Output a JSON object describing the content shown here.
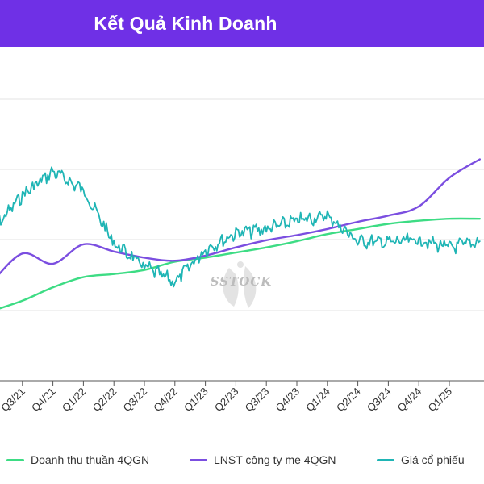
{
  "header": {
    "title": "Kết Quả Kinh Doanh"
  },
  "watermark": {
    "text": "SSTOCK"
  },
  "colors": {
    "header_bg": "#6f30e6",
    "revenue": "#3ddc84",
    "profit": "#7b4ee0",
    "price": "#1fb5b5",
    "grid": "#e3e3e3"
  },
  "chart_data": {
    "type": "line",
    "categories": [
      "Q3/21",
      "Q4/21",
      "Q1/22",
      "Q2/22",
      "Q3/22",
      "Q4/22",
      "Q1/23",
      "Q2/23",
      "Q3/23",
      "Q4/23",
      "Q1/24",
      "Q2/24",
      "Q3/24",
      "Q4/24",
      "Q1/25"
    ],
    "x_start": "Q2/21",
    "x_end": "Q2/25",
    "grid": true,
    "legend_position": "bottom",
    "series": [
      {
        "name": "Doanh thu thuần 4QGN",
        "x": [
          "Q2/21",
          "Q3/21",
          "Q4/21",
          "Q1/22",
          "Q2/22",
          "Q3/22",
          "Q4/22",
          "Q1/23",
          "Q2/23",
          "Q3/23",
          "Q4/23",
          "Q1/24",
          "Q2/24",
          "Q3/24",
          "Q4/24",
          "Q1/25",
          "Q2/25"
        ],
        "values": [
          2,
          12,
          25,
          35,
          38,
          42,
          50,
          54,
          59,
          64,
          70,
          77,
          82,
          87,
          90,
          92,
          92
        ]
      },
      {
        "name": "LNST công ty mẹ 4QGN",
        "x": [
          "Q2/21",
          "Q3/21",
          "Q4/21",
          "Q1/22",
          "Q2/22",
          "Q3/22",
          "Q4/22",
          "Q1/23",
          "Q2/23",
          "Q3/23",
          "Q4/23",
          "Q1/24",
          "Q2/24",
          "Q3/24",
          "Q4/24",
          "Q1/25",
          "Q2/25"
        ],
        "values": [
          30,
          58,
          48,
          67,
          60,
          54,
          51,
          56,
          64,
          71,
          76,
          82,
          89,
          95,
          104,
          132,
          150
        ]
      },
      {
        "name": "Giá cổ phiếu",
        "x": [
          "Q2/21",
          "Q3/21",
          "Q4/21",
          "Q1/22",
          "Q2/22",
          "Q3/22",
          "Q4/22",
          "Q1/23",
          "Q2/23",
          "Q3/23",
          "Q4/23",
          "Q1/24",
          "Q2/24",
          "Q3/24",
          "Q4/24",
          "Q1/25",
          "Q2/25"
        ],
        "values": [
          80,
          115,
          138,
          120,
          68,
          45,
          30,
          62,
          78,
          82,
          90,
          95,
          70,
          69,
          71,
          64,
          70
        ]
      }
    ]
  }
}
